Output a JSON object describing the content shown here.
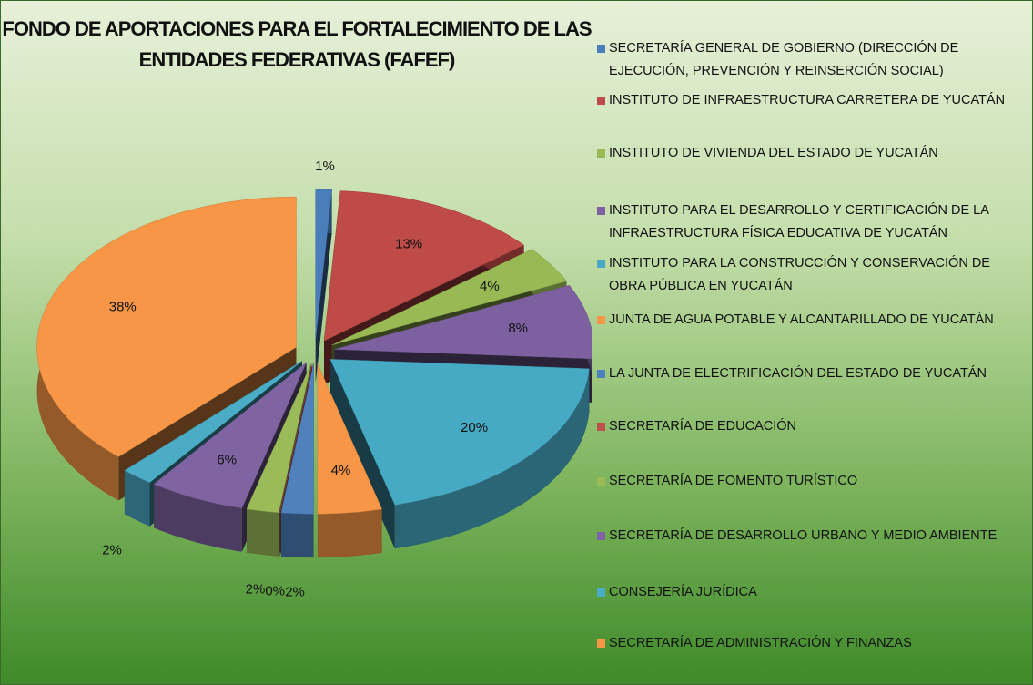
{
  "chart_data": {
    "type": "pie3d",
    "title": "FONDO DE APORTACIONES PARA EL FORTALECIMIENTO DE LAS ENTIDADES FEDERATIVAS (FAFEF)",
    "categories": [
      "SECRETARÍA GENERAL DE GOBIERNO (DIRECCIÓN DE EJECUCIÓN, PREVENCIÓN Y REINSERCIÓN SOCIAL)",
      "INSTITUTO DE INFRAESTRUCTURA CARRETERA DE YUCATÁN",
      "INSTITUTO DE VIVIENDA DEL ESTADO DE YUCATÁN",
      "INSTITUTO PARA EL DESARROLLO Y CERTIFICACIÓN DE LA INFRAESTRUCTURA FÍSICA EDUCATIVA DE YUCATÁN",
      "INSTITUTO PARA LA CONSTRUCCIÓN Y CONSERVACIÓN DE OBRA PÚBLICA EN YUCATÁN",
      "JUNTA DE AGUA POTABLE Y ALCANTARILLADO DE YUCATÁN",
      "LA JUNTA DE ELECTRIFICACIÓN DEL ESTADO DE YUCATÁN",
      "SECRETARÍA DE EDUCACIÓN",
      "SECRETARÍA DE FOMENTO TURÍSTICO",
      "SECRETARÍA DE DESARROLLO URBANO Y MEDIO AMBIENTE",
      "CONSEJERÍA JURÍDICA",
      "SECRETARÍA DE ADMINISTRACIÓN Y FINANZAS"
    ],
    "values": [
      1,
      13,
      4,
      8,
      20,
      4,
      2,
      0,
      2,
      6,
      2,
      38
    ],
    "value_labels": [
      "1%",
      "13%",
      "4%",
      "8%",
      "20%",
      "4%",
      "2%",
      "0%",
      "2%",
      "6%",
      "2%",
      "38%"
    ],
    "colors": [
      "#4a7ebb",
      "#be4b48",
      "#98b954",
      "#7d60a0",
      "#46aac5",
      "#f79646",
      "#4f81bd",
      "#c0504d",
      "#9bbb59",
      "#8064a2",
      "#4bacc6",
      "#f79646"
    ],
    "legend": "right"
  }
}
